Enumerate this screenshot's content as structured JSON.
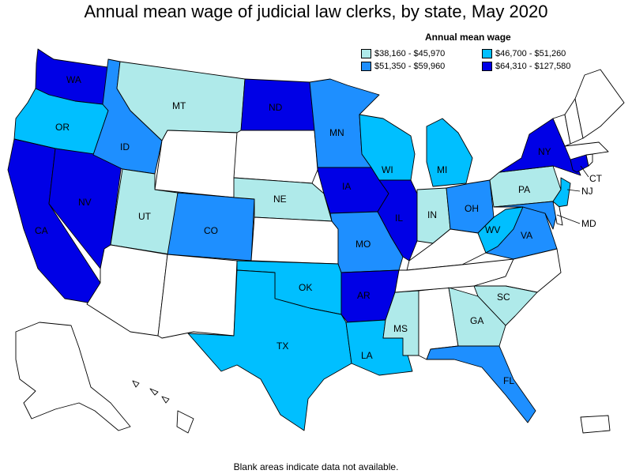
{
  "title": "Annual mean wage of judicial law clerks, by state, May 2020",
  "legend": {
    "title": "Annual mean wage",
    "items": [
      {
        "label": "$38,160 - $45,970",
        "color": "#afeaea"
      },
      {
        "label": "$46,700 - $51,260",
        "color": "#00bfff"
      },
      {
        "label": "$51,350 - $59,960",
        "color": "#1e8fff"
      },
      {
        "label": "$64,310 - $127,580",
        "color": "#0000e6"
      }
    ]
  },
  "footnote": "Blank areas indicate data not available.",
  "colors": {
    "no_data": "#ffffff",
    "border": "#000000"
  },
  "states": {
    "WA": {
      "label": "WA",
      "class": 3
    },
    "OR": {
      "label": "OR",
      "class": 1
    },
    "CA": {
      "label": "CA",
      "class": 3
    },
    "NV": {
      "label": "NV",
      "class": 3
    },
    "ID": {
      "label": "ID",
      "class": 2
    },
    "MT": {
      "label": "MT",
      "class": 0
    },
    "UT": {
      "label": "UT",
      "class": 0
    },
    "CO": {
      "label": "CO",
      "class": 2
    },
    "ND": {
      "label": "ND",
      "class": 3
    },
    "NE": {
      "label": "NE",
      "class": 0
    },
    "MN": {
      "label": "MN",
      "class": 2
    },
    "IA": {
      "label": "IA",
      "class": 3
    },
    "MO": {
      "label": "MO",
      "class": 2
    },
    "OK": {
      "label": "OK",
      "class": 1
    },
    "TX": {
      "label": "TX",
      "class": 1
    },
    "AR": {
      "label": "AR",
      "class": 3
    },
    "LA": {
      "label": "LA",
      "class": 1
    },
    "MS": {
      "label": "MS",
      "class": 0
    },
    "WI": {
      "label": "WI",
      "class": 1
    },
    "IL": {
      "label": "IL",
      "class": 3
    },
    "MI": {
      "label": "MI",
      "class": 1
    },
    "IN": {
      "label": "IN",
      "class": 0
    },
    "OH": {
      "label": "OH",
      "class": 2
    },
    "WV": {
      "label": "WV",
      "class": 1
    },
    "VA": {
      "label": "VA",
      "class": 2
    },
    "GA": {
      "label": "GA",
      "class": 0
    },
    "SC": {
      "label": "SC",
      "class": 0
    },
    "FL": {
      "label": "FL",
      "class": 2
    },
    "PA": {
      "label": "PA",
      "class": 0
    },
    "NY": {
      "label": "NY",
      "class": 3
    },
    "NJ": {
      "label": "NJ",
      "class": 1
    },
    "CT": {
      "label": "CT",
      "class": 3
    },
    "MD": {
      "label": "MD",
      "class": 2
    },
    "AZ": {
      "class": -1
    },
    "NM": {
      "class": -1
    },
    "WY": {
      "class": -1
    },
    "SD": {
      "class": -1
    },
    "KS": {
      "class": -1
    },
    "KY": {
      "class": -1
    },
    "TN": {
      "class": -1
    },
    "AL": {
      "class": -1
    },
    "NC": {
      "class": -1
    },
    "ME": {
      "class": -1
    },
    "NH": {
      "class": -1
    },
    "VT": {
      "class": -1
    },
    "MA": {
      "class": -1
    },
    "RI": {
      "class": -1
    },
    "DE": {
      "class": -1
    },
    "AK": {
      "class": -1
    },
    "HI": {
      "class": -1
    },
    "PR": {
      "class": -1
    }
  }
}
